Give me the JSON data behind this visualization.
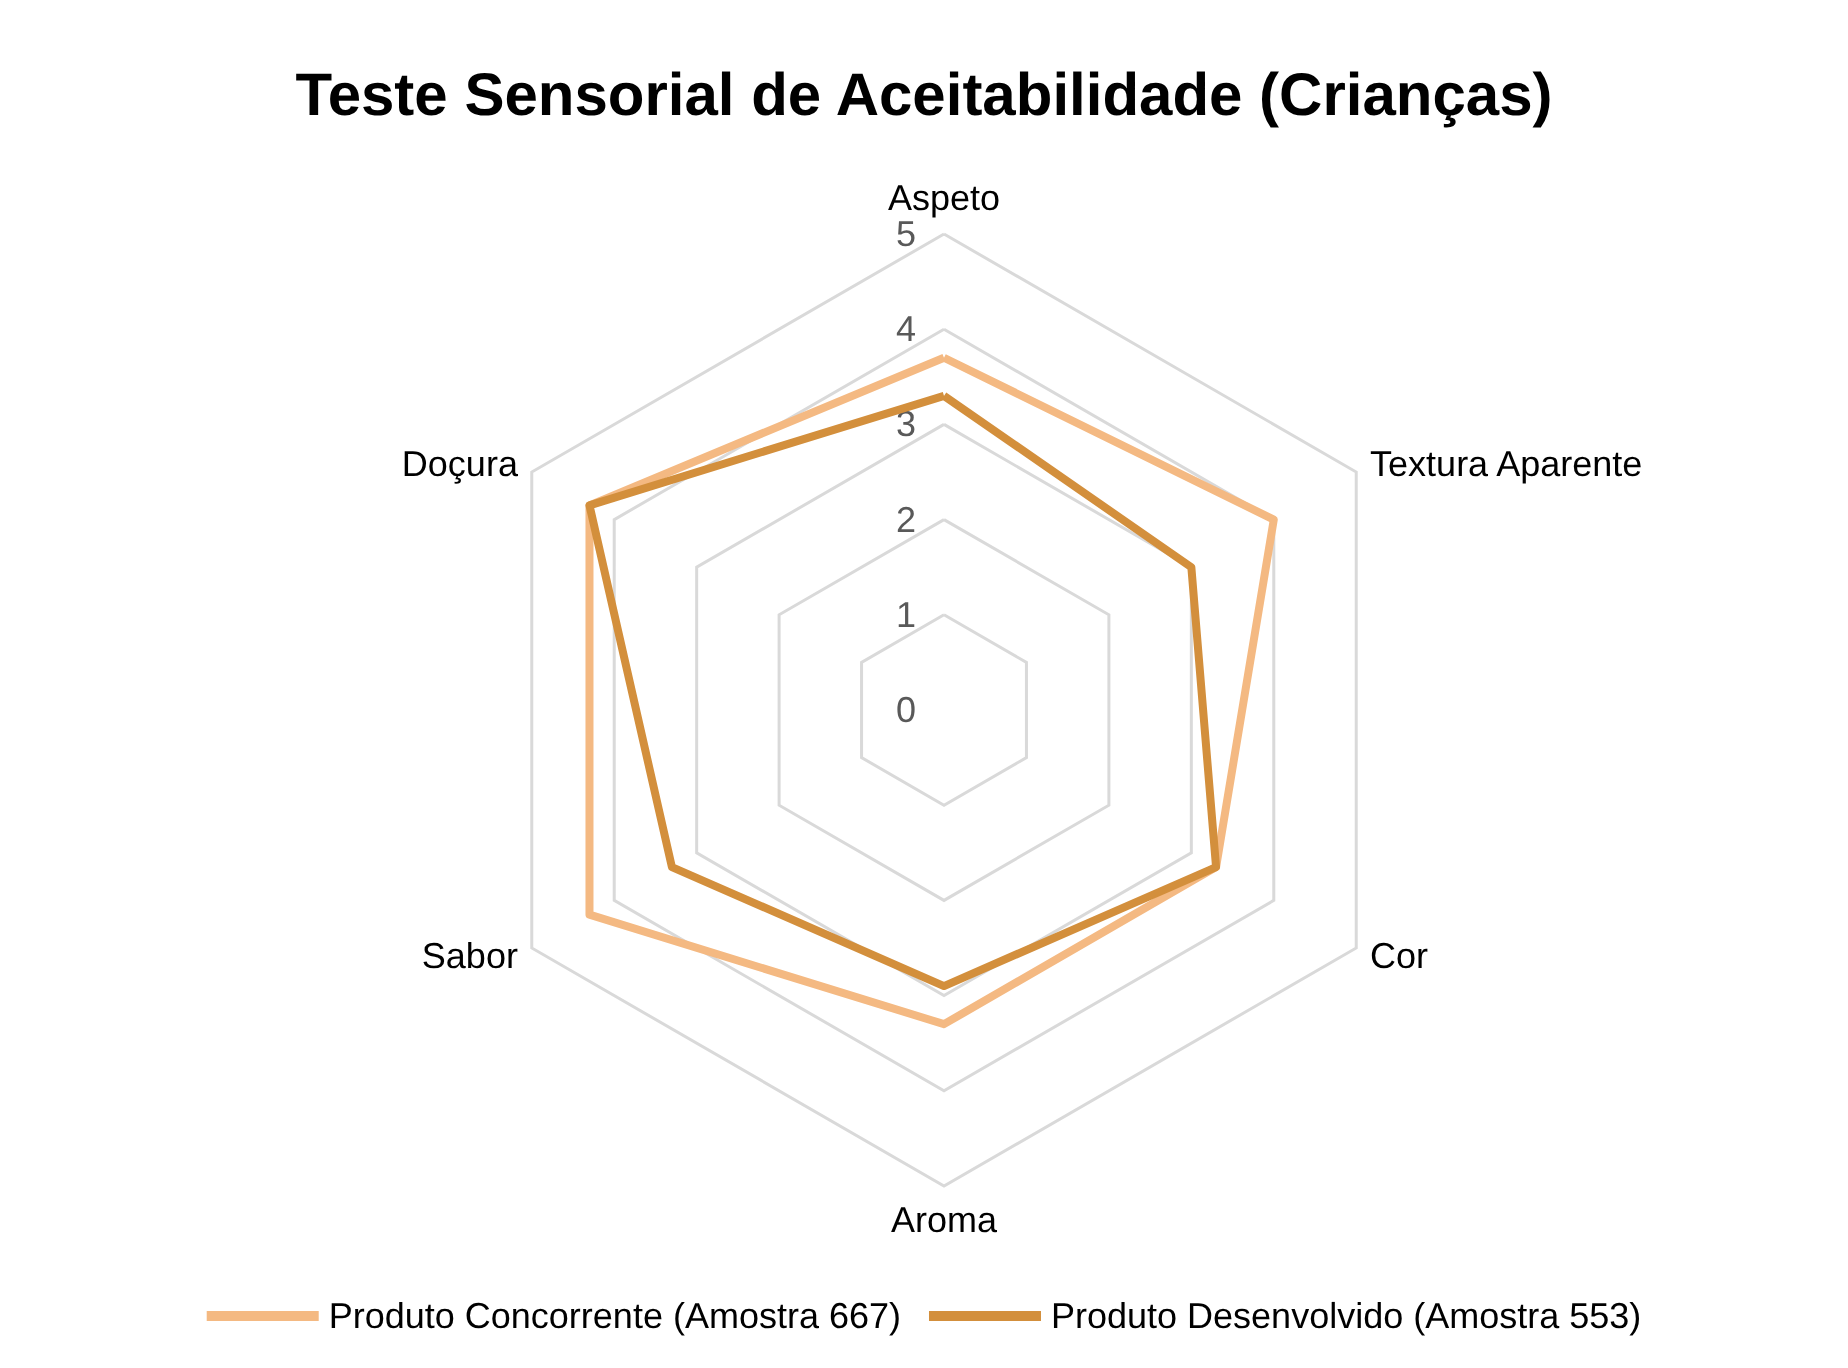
{
  "chart_data": {
    "type": "radar",
    "title": "Teste Sensorial de Aceitabilidade (Crianças)",
    "categories": [
      "Aspeto",
      "Textura Aparente",
      "Cor",
      "Aroma",
      "Sabor",
      "Doçura"
    ],
    "series": [
      {
        "name": "Produto Concorrente (Amostra 667)",
        "color": "#f4b982",
        "values": [
          3.7,
          4.0,
          3.3,
          3.3,
          4.3,
          4.3
        ]
      },
      {
        "name": "Produto Desenvolvido (Amostra 553)",
        "color": "#d38f3c",
        "values": [
          3.3,
          3.0,
          3.3,
          2.9,
          3.3,
          4.3
        ]
      }
    ],
    "ylim": [
      0,
      5
    ],
    "yticks": [
      0,
      1,
      2,
      3,
      4,
      5
    ],
    "grid": true,
    "legend": "bottom",
    "marker": "none",
    "line_style": "solid"
  }
}
